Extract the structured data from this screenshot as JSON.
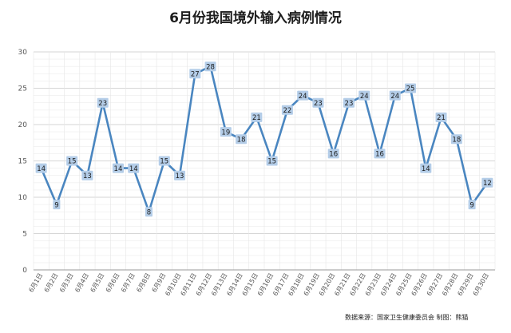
{
  "chart_data": {
    "type": "line",
    "title": "6月份我国境外输入病例情况",
    "xlabel": "",
    "ylabel": "",
    "ylim": [
      0,
      30
    ],
    "yticks": [
      0,
      5,
      10,
      15,
      20,
      25,
      30
    ],
    "grid": true,
    "legend": "none",
    "categories": [
      "6月1日",
      "6月2日",
      "6月3日",
      "6月4日",
      "6月5日",
      "6月6日",
      "6月7日",
      "6月8日",
      "6月9日",
      "6月10日",
      "6月11日",
      "6月12日",
      "6月13日",
      "6月14日",
      "6月15日",
      "6月16日",
      "6月17日",
      "6月18日",
      "6月19日",
      "6月20日",
      "6月21日",
      "6月22日",
      "6月23日",
      "6月24日",
      "6月25日",
      "6月26日",
      "6月27日",
      "6月28日",
      "6月29日",
      "6月30日"
    ],
    "series": [
      {
        "values": [
          14,
          9,
          15,
          13,
          23,
          14,
          14,
          8,
          15,
          13,
          27,
          28,
          19,
          18,
          21,
          15,
          22,
          24,
          23,
          16,
          23,
          24,
          16,
          24,
          25,
          14,
          21,
          18,
          9,
          12
        ]
      }
    ],
    "source": "数据来源：国家卫生健康委员会 制图：熊猫"
  },
  "colors": {
    "line": "#4a86c0",
    "label_bg": "#b4cde8",
    "grid": "#d9d9d9",
    "axis": "#9a9a9a",
    "title": "#1e1e1e"
  }
}
